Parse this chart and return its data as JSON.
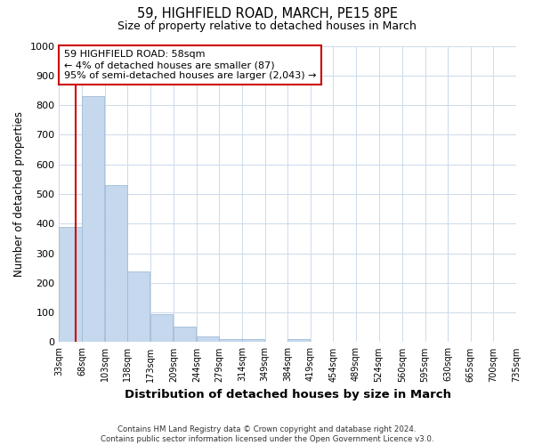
{
  "title": "59, HIGHFIELD ROAD, MARCH, PE15 8PE",
  "subtitle": "Size of property relative to detached houses in March",
  "xlabel": "Distribution of detached houses by size in March",
  "ylabel": "Number of detached properties",
  "bar_color": "#c5d8ed",
  "bar_edge_color": "#a0bcd8",
  "grid_color": "#ccdaeb",
  "background_color": "#ffffff",
  "annotation_box_color": "#cc0000",
  "vline_color": "#cc0000",
  "bins": [
    33,
    68,
    103,
    138,
    173,
    209,
    244,
    279,
    314,
    349,
    384,
    419,
    454,
    489,
    524,
    560,
    595,
    630,
    665,
    700,
    735
  ],
  "bar_heights": [
    390,
    830,
    530,
    240,
    95,
    52,
    20,
    10,
    10,
    0,
    10,
    0,
    0,
    0,
    0,
    0,
    0,
    0,
    0,
    0
  ],
  "property_size": 58,
  "ylim": [
    0,
    1000
  ],
  "yticks": [
    0,
    100,
    200,
    300,
    400,
    500,
    600,
    700,
    800,
    900,
    1000
  ],
  "annotation_text": "59 HIGHFIELD ROAD: 58sqm\n← 4% of detached houses are smaller (87)\n95% of semi-detached houses are larger (2,043) →",
  "footer_text": "Contains HM Land Registry data © Crown copyright and database right 2024.\nContains public sector information licensed under the Open Government Licence v3.0.",
  "tick_labels": [
    "33sqm",
    "68sqm",
    "103sqm",
    "138sqm",
    "173sqm",
    "209sqm",
    "244sqm",
    "279sqm",
    "314sqm",
    "349sqm",
    "384sqm",
    "419sqm",
    "454sqm",
    "489sqm",
    "524sqm",
    "560sqm",
    "595sqm",
    "630sqm",
    "665sqm",
    "700sqm",
    "735sqm"
  ]
}
